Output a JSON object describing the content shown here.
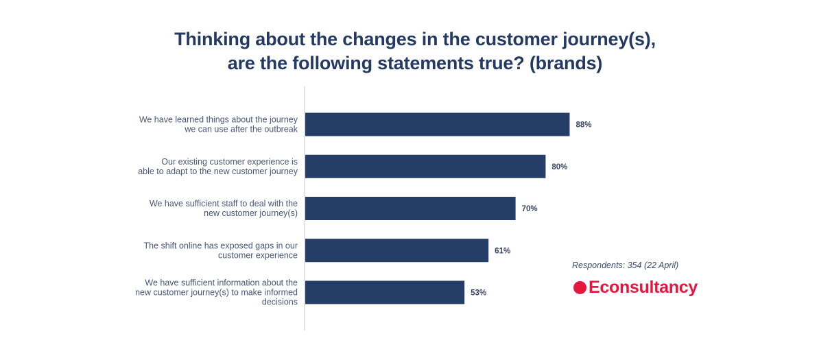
{
  "title": {
    "line1": "Thinking about the changes in the customer journey(s),",
    "line2": "are the following statements true? (brands)"
  },
  "note": {
    "respondents": "Respondents: 354 (22 April)"
  },
  "brand": {
    "name": "Econsultancy",
    "color": "#e5173f"
  },
  "colors": {
    "bar": "#253e68",
    "title": "#253a63"
  },
  "chart_data": {
    "type": "bar",
    "orientation": "horizontal",
    "title": "Thinking about the changes in the customer journey(s), are the following statements true? (brands)",
    "categories": [
      [
        "We have learned things about the journey",
        "we can use after the outbreak"
      ],
      [
        "Our existing customer experience is",
        "able to adapt to the new customer journey"
      ],
      [
        "We have sufficient staff to deal with the",
        "new customer journey(s)"
      ],
      [
        "The shift online has exposed gaps in our",
        "customer experience"
      ],
      [
        "We have sufficient information about the",
        "new customer journey(s) to make informed",
        "decisions"
      ]
    ],
    "values": [
      88,
      80,
      70,
      61,
      53
    ],
    "value_labels": [
      "88%",
      "80%",
      "70%",
      "61%",
      "53%"
    ],
    "xlim": [
      0,
      100
    ],
    "grid": false,
    "legend": "none"
  }
}
